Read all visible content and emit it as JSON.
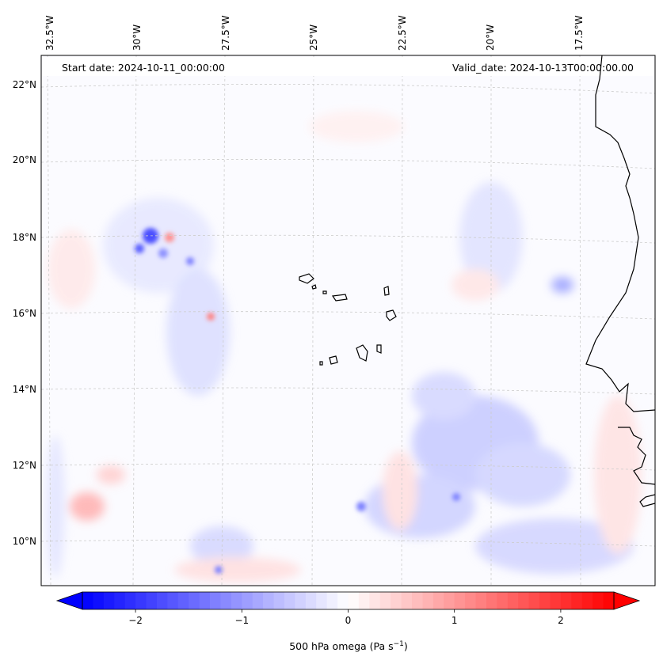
{
  "map": {
    "start_date": "Start date: 2024-10-11_00:00:00",
    "valid_date": "Valid_date: 2024-10-13T00:00:00.00",
    "lon_labels": [
      "32.5°W",
      "30°W",
      "27.5°W",
      "25°W",
      "22.5°W",
      "20°W",
      "17.5°W"
    ],
    "lat_labels": [
      "22°N",
      "20°N",
      "18°N",
      "16°N",
      "14°N",
      "12°N",
      "10°N"
    ],
    "features": {
      "coastline": "africa-coastline",
      "islands": "cape-verde-islands"
    },
    "colors": {
      "negative": "#0000ff",
      "zero": "#ffffff",
      "positive": "#ff0000",
      "gridline": "#bbbbbb",
      "coastline": "#000000"
    }
  },
  "colorbar": {
    "label_prefix": "500 hPa omega (Pa s",
    "label_exp": "−1",
    "label_suffix": ")",
    "ticks": [
      {
        "value": -2,
        "label": "−2"
      },
      {
        "value": -1,
        "label": "−1"
      },
      {
        "value": 0,
        "label": "0"
      },
      {
        "value": 1,
        "label": "1"
      },
      {
        "value": 2,
        "label": "2"
      }
    ],
    "vmin": -2.5,
    "vmax": 2.5,
    "levels": 50
  }
}
